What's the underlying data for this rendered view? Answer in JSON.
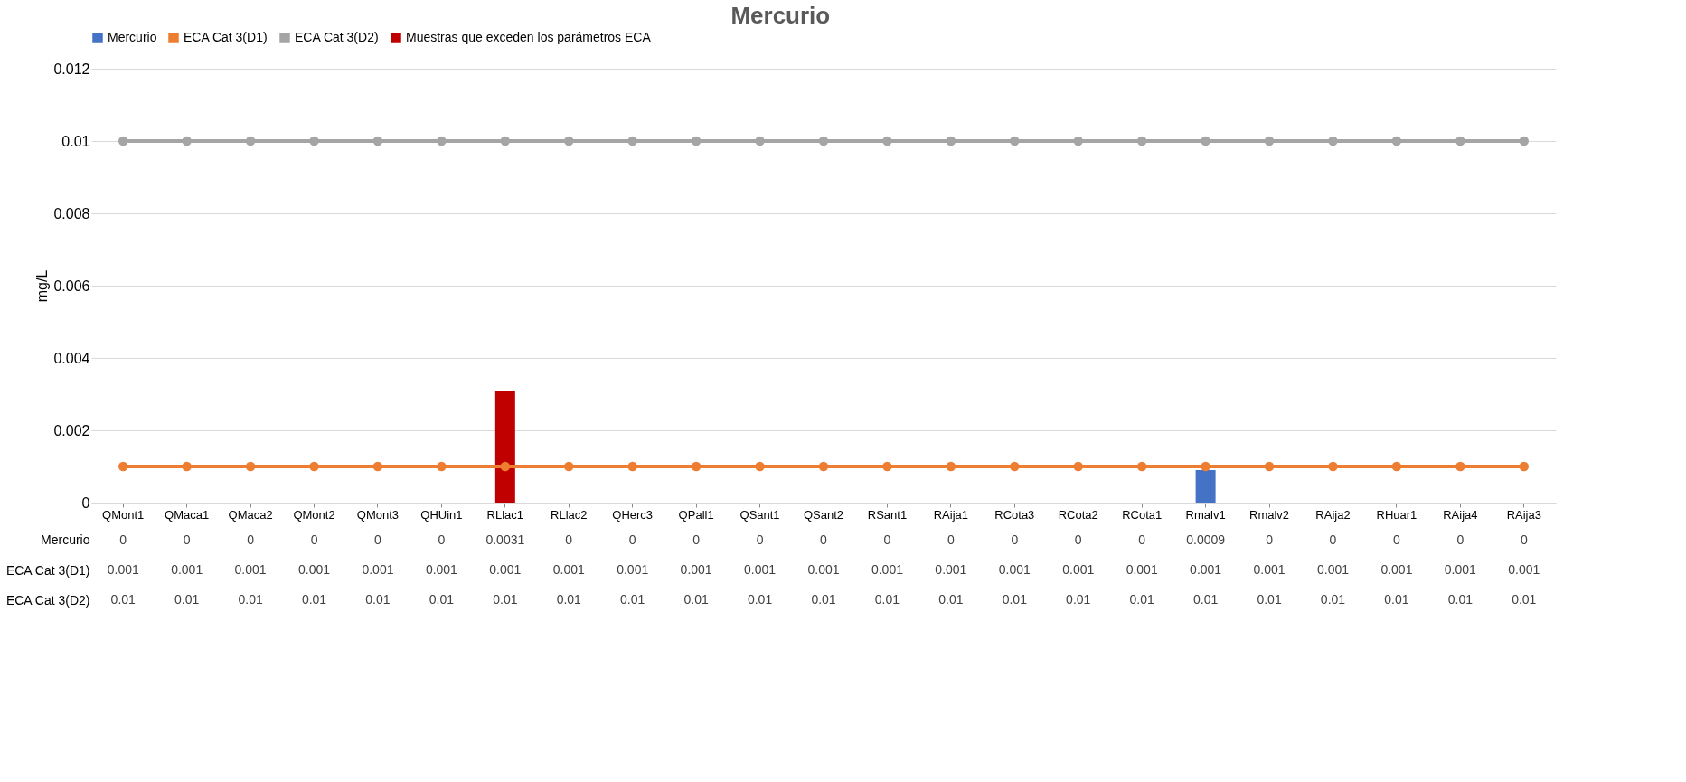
{
  "chart_data": {
    "type": "bar",
    "title": "Mercurio",
    "ylabel": "mg/L",
    "categories": [
      "QMont1",
      "QMaca1",
      "QMaca2",
      "QMont2",
      "QMont3",
      "QHUin1",
      "RLlac1",
      "RLlac2",
      "QHerc3",
      "QPall1",
      "QSant1",
      "QSant2",
      "RSant1",
      "RAija1",
      "RCota3",
      "RCota2",
      "RCota1",
      "Rmalv1",
      "Rmalv2",
      "RAija2",
      "RHuar1",
      "RAija4",
      "RAija3"
    ],
    "series": [
      {
        "name": "Mercurio",
        "color": "#4472c4",
        "values": [
          0,
          0,
          0,
          0,
          0,
          0,
          null,
          0,
          0,
          0,
          0,
          0,
          0,
          0,
          0,
          0,
          0,
          0.0009,
          0,
          0,
          0,
          0,
          0
        ],
        "value_labels": [
          "0",
          "0",
          "0",
          "0",
          "0",
          "0",
          "0.0031",
          "0",
          "0",
          "0",
          "0",
          "0",
          "0",
          "0",
          "0",
          "0",
          "0",
          "0.0009",
          "0",
          "0",
          "0",
          "0",
          "0"
        ]
      },
      {
        "name": "ECA Cat 3(D1)",
        "color": "#ed7d31",
        "type": "line",
        "values": [
          0.001,
          0.001,
          0.001,
          0.001,
          0.001,
          0.001,
          0.001,
          0.001,
          0.001,
          0.001,
          0.001,
          0.001,
          0.001,
          0.001,
          0.001,
          0.001,
          0.001,
          0.001,
          0.001,
          0.001,
          0.001,
          0.001,
          0.001
        ],
        "value_labels": [
          "0.001",
          "0.001",
          "0.001",
          "0.001",
          "0.001",
          "0.001",
          "0.001",
          "0.001",
          "0.001",
          "0.001",
          "0.001",
          "0.001",
          "0.001",
          "0.001",
          "0.001",
          "0.001",
          "0.001",
          "0.001",
          "0.001",
          "0.001",
          "0.001",
          "0.001",
          "0.001"
        ]
      },
      {
        "name": "ECA Cat 3(D2)",
        "color": "#a5a5a5",
        "type": "line",
        "values": [
          0.01,
          0.01,
          0.01,
          0.01,
          0.01,
          0.01,
          0.01,
          0.01,
          0.01,
          0.01,
          0.01,
          0.01,
          0.01,
          0.01,
          0.01,
          0.01,
          0.01,
          0.01,
          0.01,
          0.01,
          0.01,
          0.01,
          0.01
        ],
        "value_labels": [
          "0.01",
          "0.01",
          "0.01",
          "0.01",
          "0.01",
          "0.01",
          "0.01",
          "0.01",
          "0.01",
          "0.01",
          "0.01",
          "0.01",
          "0.01",
          "0.01",
          "0.01",
          "0.01",
          "0.01",
          "0.01",
          "0.01",
          "0.01",
          "0.01",
          "0.01",
          "0.01"
        ]
      },
      {
        "name": "Muestras que exceden los parámetros ECA",
        "color": "#c00000",
        "values": [
          null,
          null,
          null,
          null,
          null,
          null,
          0.0031,
          null,
          null,
          null,
          null,
          null,
          null,
          null,
          null,
          null,
          null,
          null,
          null,
          null,
          null,
          null,
          null
        ]
      }
    ],
    "ylim": [
      0,
      0.012
    ],
    "yticks": [
      0,
      0.002,
      0.004,
      0.006,
      0.008,
      0.01,
      0.012
    ],
    "grid": "y",
    "legend": "top",
    "marker": "circle",
    "line_style": "solid"
  }
}
